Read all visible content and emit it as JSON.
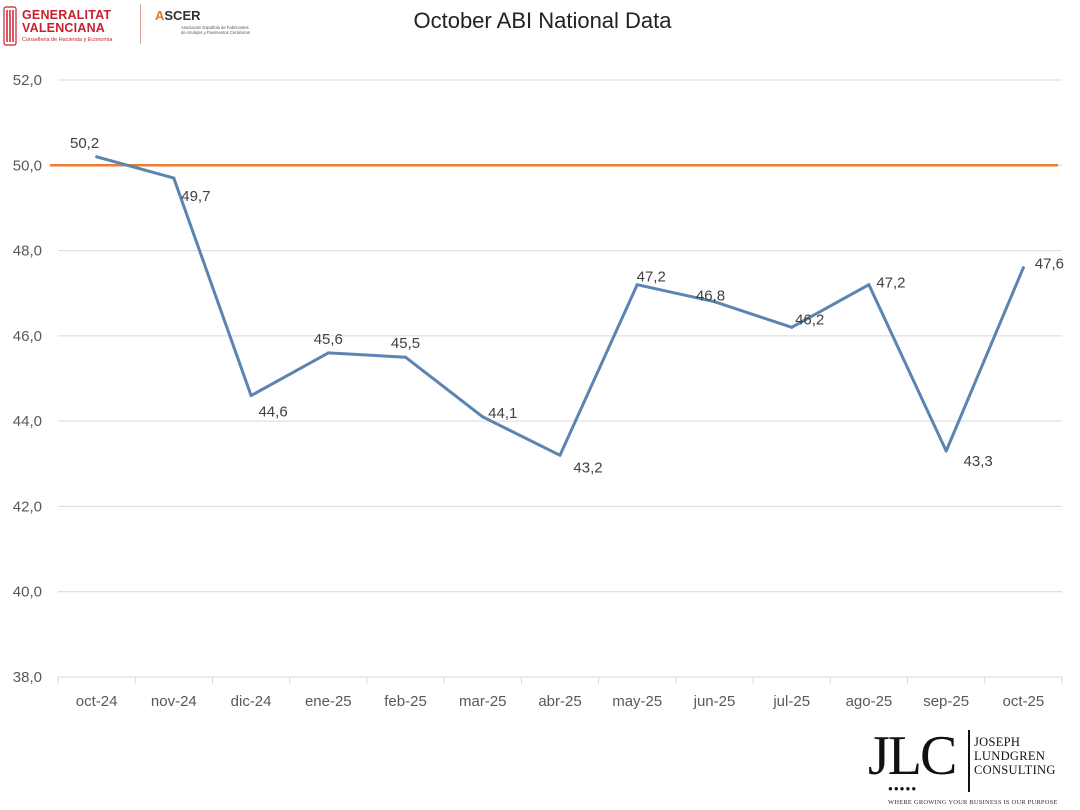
{
  "header": {
    "title": "October ABI National Data",
    "logo_gv": {
      "line1": "GENERALITAT",
      "line2": "VALENCIANA",
      "sub": "Conselleria de Hacienda y Economía"
    },
    "logo_ascer": {
      "name_accent": "A",
      "name_rest": "SCER",
      "sub": "Asociación Española de Fabricantes de Azulejos y Pavimentos Cerámicos"
    }
  },
  "footer": {
    "jlc_letters": "JLC",
    "jlc_name": [
      "JOSEPH",
      "LUNDGREN",
      "CONSULTING"
    ],
    "jlc_tagline": "WHERE GROWING YOUR BUSINESS IS OUR PURPOSE"
  },
  "colors": {
    "series": "#5b84b1",
    "reference": "#ed7d31",
    "grid": "#d9d9d9",
    "axis_text": "#595959"
  },
  "chart_data": {
    "type": "line",
    "title": "October ABI National Data",
    "categories": [
      "oct-24",
      "nov-24",
      "dic-24",
      "ene-25",
      "feb-25",
      "mar-25",
      "abr-25",
      "may-25",
      "jun-25",
      "jul-25",
      "ago-25",
      "sep-25",
      "oct-25"
    ],
    "series": [
      {
        "name": "ABI",
        "values": [
          50.2,
          49.7,
          44.6,
          45.6,
          45.5,
          44.1,
          43.2,
          47.2,
          46.8,
          46.2,
          47.2,
          43.3,
          47.6
        ]
      }
    ],
    "data_labels": [
      "50,2",
      "49,7",
      "44,6",
      "45,6",
      "45,5",
      "44,1",
      "43,2",
      "47,2",
      "46,8",
      "46,2",
      "47,2",
      "43,3",
      "47,6"
    ],
    "reference_line": {
      "value": 50.0
    },
    "ylim": [
      38,
      52
    ],
    "yticks": [
      38,
      40,
      42,
      44,
      46,
      48,
      50,
      52
    ],
    "ytick_labels": [
      "38,0",
      "40,0",
      "42,0",
      "44,0",
      "46,0",
      "48,0",
      "50,0",
      "52,0"
    ],
    "grid": true,
    "legend": "none"
  }
}
